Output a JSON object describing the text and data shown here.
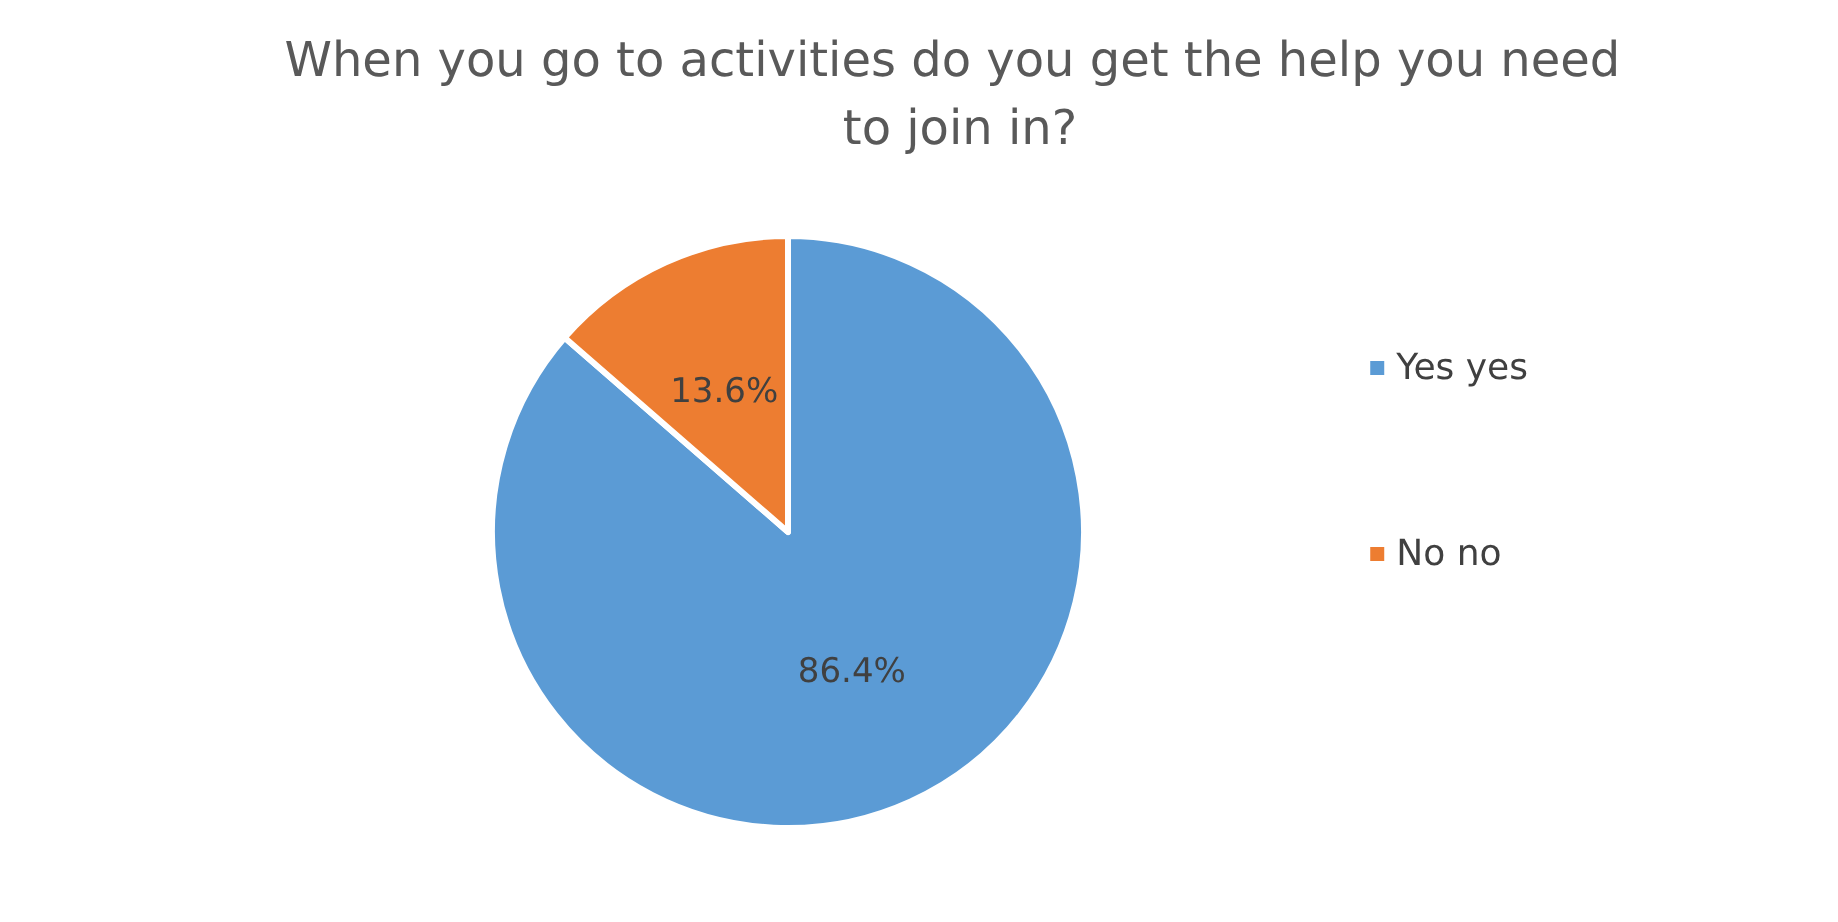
{
  "chart_data": {
    "type": "pie",
    "title": "When you go to activities do you get the help you need to join in?",
    "categories": [
      "Yes yes",
      "No no"
    ],
    "values": [
      86.4,
      13.6
    ],
    "colors": [
      "#5b9bd5",
      "#ed7d31"
    ],
    "value_labels": [
      "86.4%",
      "13.6%"
    ],
    "legend": "right"
  }
}
